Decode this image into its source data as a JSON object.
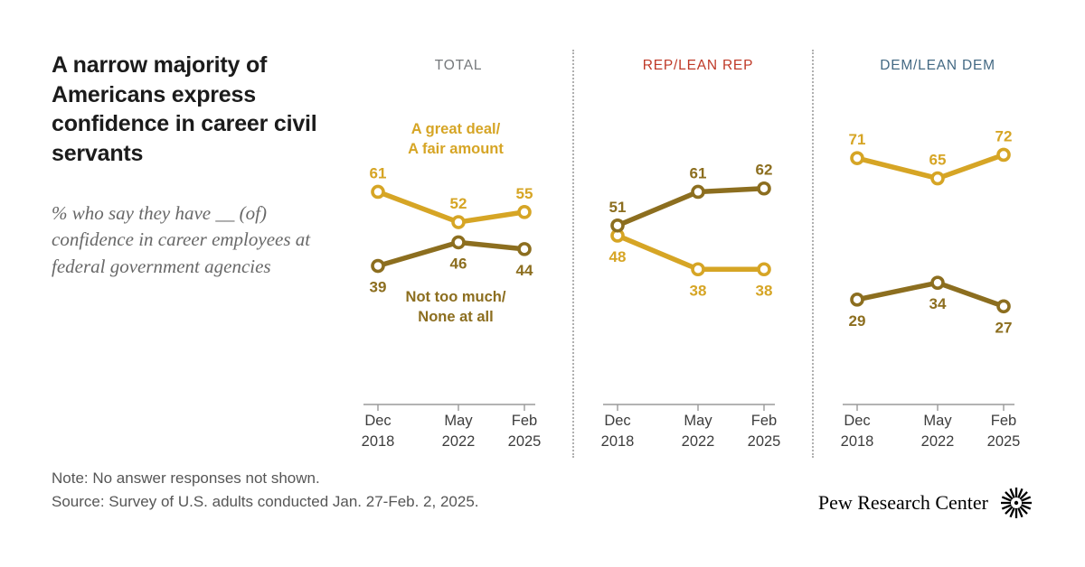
{
  "title": "A narrow majority of Americans express confidence in career civil servants",
  "subtitle": "% who say they have __ (of) confidence in career employees at federal government agencies",
  "note": "Note: No answer responses not shown.",
  "source": "Source: Survey of U.S. adults conducted Jan. 27-Feb. 2, 2025.",
  "logo": {
    "text": "Pew Research Center"
  },
  "colors": {
    "great_deal": "#D6A525",
    "not_much": "#8C6E1F",
    "total_header": "#75787B",
    "rep_header": "#BF3927",
    "dem_header": "#436983",
    "axis": "#9a9a9a",
    "tick_label": "#3d3d3d"
  },
  "chart_data": {
    "type": "line",
    "ylim": [
      0,
      100
    ],
    "x_tick_labels": [
      [
        "Dec",
        "2018"
      ],
      [
        "May",
        "2022"
      ],
      [
        "Feb",
        "2025"
      ]
    ],
    "legend": {
      "great_deal": "A great deal/A fair amount",
      "not_much": "Not too much/None at all"
    },
    "panels": [
      {
        "header": "TOTAL",
        "header_color_key": "total_header",
        "series": [
          {
            "key": "great_deal",
            "name": "A great deal/A fair amount",
            "color_key": "great_deal",
            "values": [
              61,
              52,
              55
            ],
            "label_position": "above"
          },
          {
            "key": "not_much",
            "name": "Not too much/None at all",
            "color_key": "not_much",
            "values": [
              39,
              46,
              44
            ],
            "label_position": "below"
          }
        ],
        "annotations": [
          {
            "lines": [
              "A great deal/",
              "A fair amount"
            ],
            "color_key": "great_deal",
            "pos": "upper"
          },
          {
            "lines": [
              "Not too much/",
              "None at all"
            ],
            "color_key": "not_much",
            "pos": "lower"
          }
        ]
      },
      {
        "header": "REP/LEAN REP",
        "header_color_key": "rep_header",
        "series": [
          {
            "key": "great_deal",
            "name": "A great deal/A fair amount",
            "color_key": "great_deal",
            "values": [
              48,
              38,
              38
            ],
            "label_position": "below"
          },
          {
            "key": "not_much",
            "name": "Not too much/None at all",
            "color_key": "not_much",
            "values": [
              51,
              61,
              62
            ],
            "label_position": "above"
          }
        ],
        "annotations": []
      },
      {
        "header": "DEM/LEAN DEM",
        "header_color_key": "dem_header",
        "series": [
          {
            "key": "great_deal",
            "name": "A great deal/A fair amount",
            "color_key": "great_deal",
            "values": [
              71,
              65,
              72
            ],
            "label_position": "above"
          },
          {
            "key": "not_much",
            "name": "Not too much/None at all",
            "color_key": "not_much",
            "values": [
              29,
              34,
              27
            ],
            "label_position": "below"
          }
        ],
        "annotations": []
      }
    ]
  }
}
